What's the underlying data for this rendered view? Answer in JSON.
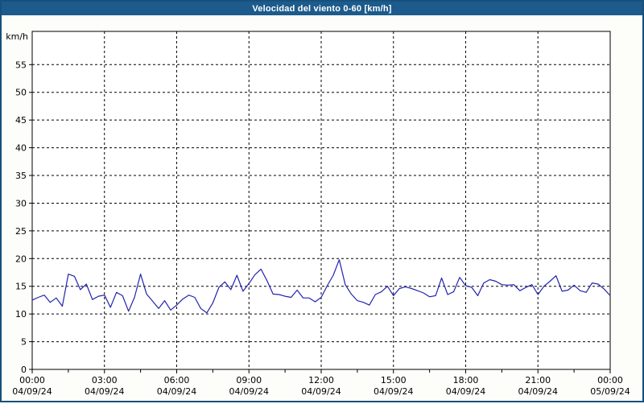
{
  "window": {
    "title": "Velocidad del viento 0-60 [km/h]"
  },
  "colors": {
    "titlebar_bg": "#1c5b8c",
    "frame_border": "#17507c",
    "plot_bg": "#fdfdfa",
    "grid": "#000000",
    "axis": "#000000",
    "line": "#2323b0",
    "title_text": "#ffffff",
    "tick_text": "#000000"
  },
  "chart_data": {
    "type": "line",
    "title": "Velocidad del viento 0-60 [km/h]",
    "xlabel": "",
    "ylabel": "km/h",
    "ylim": [
      0,
      61
    ],
    "xlim_hours": [
      0,
      24
    ],
    "grid": "dashed",
    "legend": "none",
    "yticks": [
      0,
      5,
      10,
      15,
      20,
      25,
      30,
      35,
      40,
      45,
      50,
      55
    ],
    "x_minor_tick_step_hours": 1.5,
    "xticks": [
      {
        "t": 0,
        "time": "00:00",
        "date": "04/09/24"
      },
      {
        "t": 3,
        "time": "03:00",
        "date": "04/09/24"
      },
      {
        "t": 6,
        "time": "06:00",
        "date": "04/09/24"
      },
      {
        "t": 9,
        "time": "09:00",
        "date": "04/09/24"
      },
      {
        "t": 12,
        "time": "12:00",
        "date": "04/09/24"
      },
      {
        "t": 15,
        "time": "15:00",
        "date": "04/09/24"
      },
      {
        "t": 18,
        "time": "18:00",
        "date": "04/09/24"
      },
      {
        "t": 21,
        "time": "21:00",
        "date": "04/09/24"
      },
      {
        "t": 24,
        "time": "00:00",
        "date": "05/09/24"
      }
    ],
    "series": [
      {
        "name": "Velocidad del viento [km/h]",
        "x_hours": [
          0,
          0.25,
          0.5,
          0.75,
          1,
          1.25,
          1.5,
          1.75,
          2,
          2.25,
          2.5,
          2.75,
          3,
          3.25,
          3.5,
          3.75,
          4,
          4.25,
          4.5,
          4.75,
          5,
          5.25,
          5.5,
          5.75,
          6,
          6.25,
          6.5,
          6.75,
          7,
          7.25,
          7.5,
          7.75,
          8,
          8.25,
          8.5,
          8.75,
          9,
          9.25,
          9.5,
          9.75,
          10,
          10.25,
          10.5,
          10.75,
          11,
          11.25,
          11.5,
          11.75,
          12,
          12.25,
          12.5,
          12.75,
          13,
          13.25,
          13.5,
          13.75,
          14,
          14.25,
          14.5,
          14.75,
          15,
          15.25,
          15.5,
          15.75,
          16,
          16.25,
          16.5,
          16.75,
          17,
          17.25,
          17.5,
          17.75,
          18,
          18.25,
          18.5,
          18.75,
          19,
          19.25,
          19.5,
          19.75,
          20,
          20.25,
          20.5,
          20.75,
          21,
          21.25,
          21.5,
          21.75,
          22,
          22.25,
          22.5,
          22.75,
          23,
          23.25,
          23.5,
          23.75,
          24
        ],
        "values": [
          12.5,
          13.0,
          13.4,
          12.1,
          12.9,
          11.4,
          17.2,
          16.8,
          14.4,
          15.4,
          12.6,
          13.2,
          13.4,
          11.2,
          13.9,
          13.3,
          10.5,
          13.0,
          17.2,
          13.6,
          12.3,
          11.0,
          12.4,
          10.7,
          11.6,
          12.7,
          13.4,
          13.0,
          11.0,
          10.2,
          12.0,
          14.8,
          15.8,
          14.4,
          17.0,
          14.1,
          15.5,
          17.1,
          18.1,
          16.0,
          13.6,
          13.5,
          13.2,
          13.0,
          14.3,
          12.9,
          12.9,
          12.2,
          13.0,
          15.1,
          17.0,
          19.8,
          15.3,
          13.6,
          12.4,
          12.1,
          11.6,
          13.5,
          14.0,
          15.0,
          13.3,
          14.6,
          14.9,
          14.6,
          14.2,
          13.8,
          13.1,
          13.3,
          16.5,
          13.5,
          14.0,
          16.6,
          15.1,
          14.8,
          13.3,
          15.6,
          16.2,
          15.9,
          15.3,
          15.2,
          15.3,
          14.2,
          14.8,
          15.3,
          13.5,
          15.0,
          15.9,
          16.9,
          14.1,
          14.3,
          15.2,
          14.2,
          13.9,
          15.6,
          15.4,
          14.5,
          13.3
        ]
      }
    ]
  }
}
